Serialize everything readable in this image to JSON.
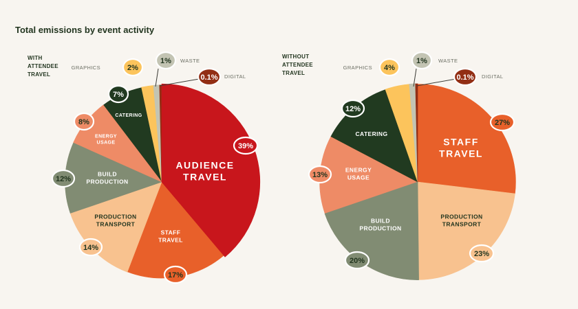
{
  "title": "Total emissions by event activity",
  "chart_data": [
    {
      "type": "pie",
      "label_lines": [
        "WITH",
        "ATTENDEE",
        "TRAVEL"
      ],
      "slices": [
        {
          "name": "AUDIENCE TRAVEL",
          "value": 39,
          "pct": "39%",
          "color": "#c8161c"
        },
        {
          "name": "STAFF TRAVEL",
          "value": 17,
          "pct": "17%",
          "color": "#e8602a"
        },
        {
          "name": "PRODUCTION TRANSPORT",
          "value": 14,
          "pct": "14%",
          "color": "#f8c28f"
        },
        {
          "name": "BUILD PRODUCTION",
          "value": 12,
          "pct": "12%",
          "color": "#818c73"
        },
        {
          "name": "ENERGY USAGE",
          "value": 8,
          "pct": "8%",
          "color": "#ee8b66"
        },
        {
          "name": "CATERING",
          "value": 7,
          "pct": "7%",
          "color": "#213a20"
        },
        {
          "name": "GRAPHICS",
          "value": 2,
          "pct": "2%",
          "color": "#fcc45c"
        },
        {
          "name": "WASTE",
          "value": 1,
          "pct": "1%",
          "color": "#c3c4b3"
        },
        {
          "name": "DIGITAL",
          "value": 0.1,
          "pct": "0.1%",
          "color": "#922e14"
        }
      ]
    },
    {
      "type": "pie",
      "label_lines": [
        "WITHOUT",
        "ATTENDEE",
        "TRAVEL"
      ],
      "slices": [
        {
          "name": "STAFF TRAVEL",
          "value": 27,
          "pct": "27%",
          "color": "#e8602a"
        },
        {
          "name": "PRODUCTION TRANSPORT",
          "value": 23,
          "pct": "23%",
          "color": "#f8c28f"
        },
        {
          "name": "BUILD PRODUCTION",
          "value": 20,
          "pct": "20%",
          "color": "#818c73"
        },
        {
          "name": "ENERGY USAGE",
          "value": 13,
          "pct": "13%",
          "color": "#ee8b66"
        },
        {
          "name": "CATERING",
          "value": 12,
          "pct": "12%",
          "color": "#213a20"
        },
        {
          "name": "GRAPHICS",
          "value": 4,
          "pct": "4%",
          "color": "#fcc45c"
        },
        {
          "name": "WASTE",
          "value": 1,
          "pct": "1%",
          "color": "#c3c4b3"
        },
        {
          "name": "DIGITAL",
          "value": 0.1,
          "pct": "0.1%",
          "color": "#922e14"
        }
      ]
    }
  ]
}
